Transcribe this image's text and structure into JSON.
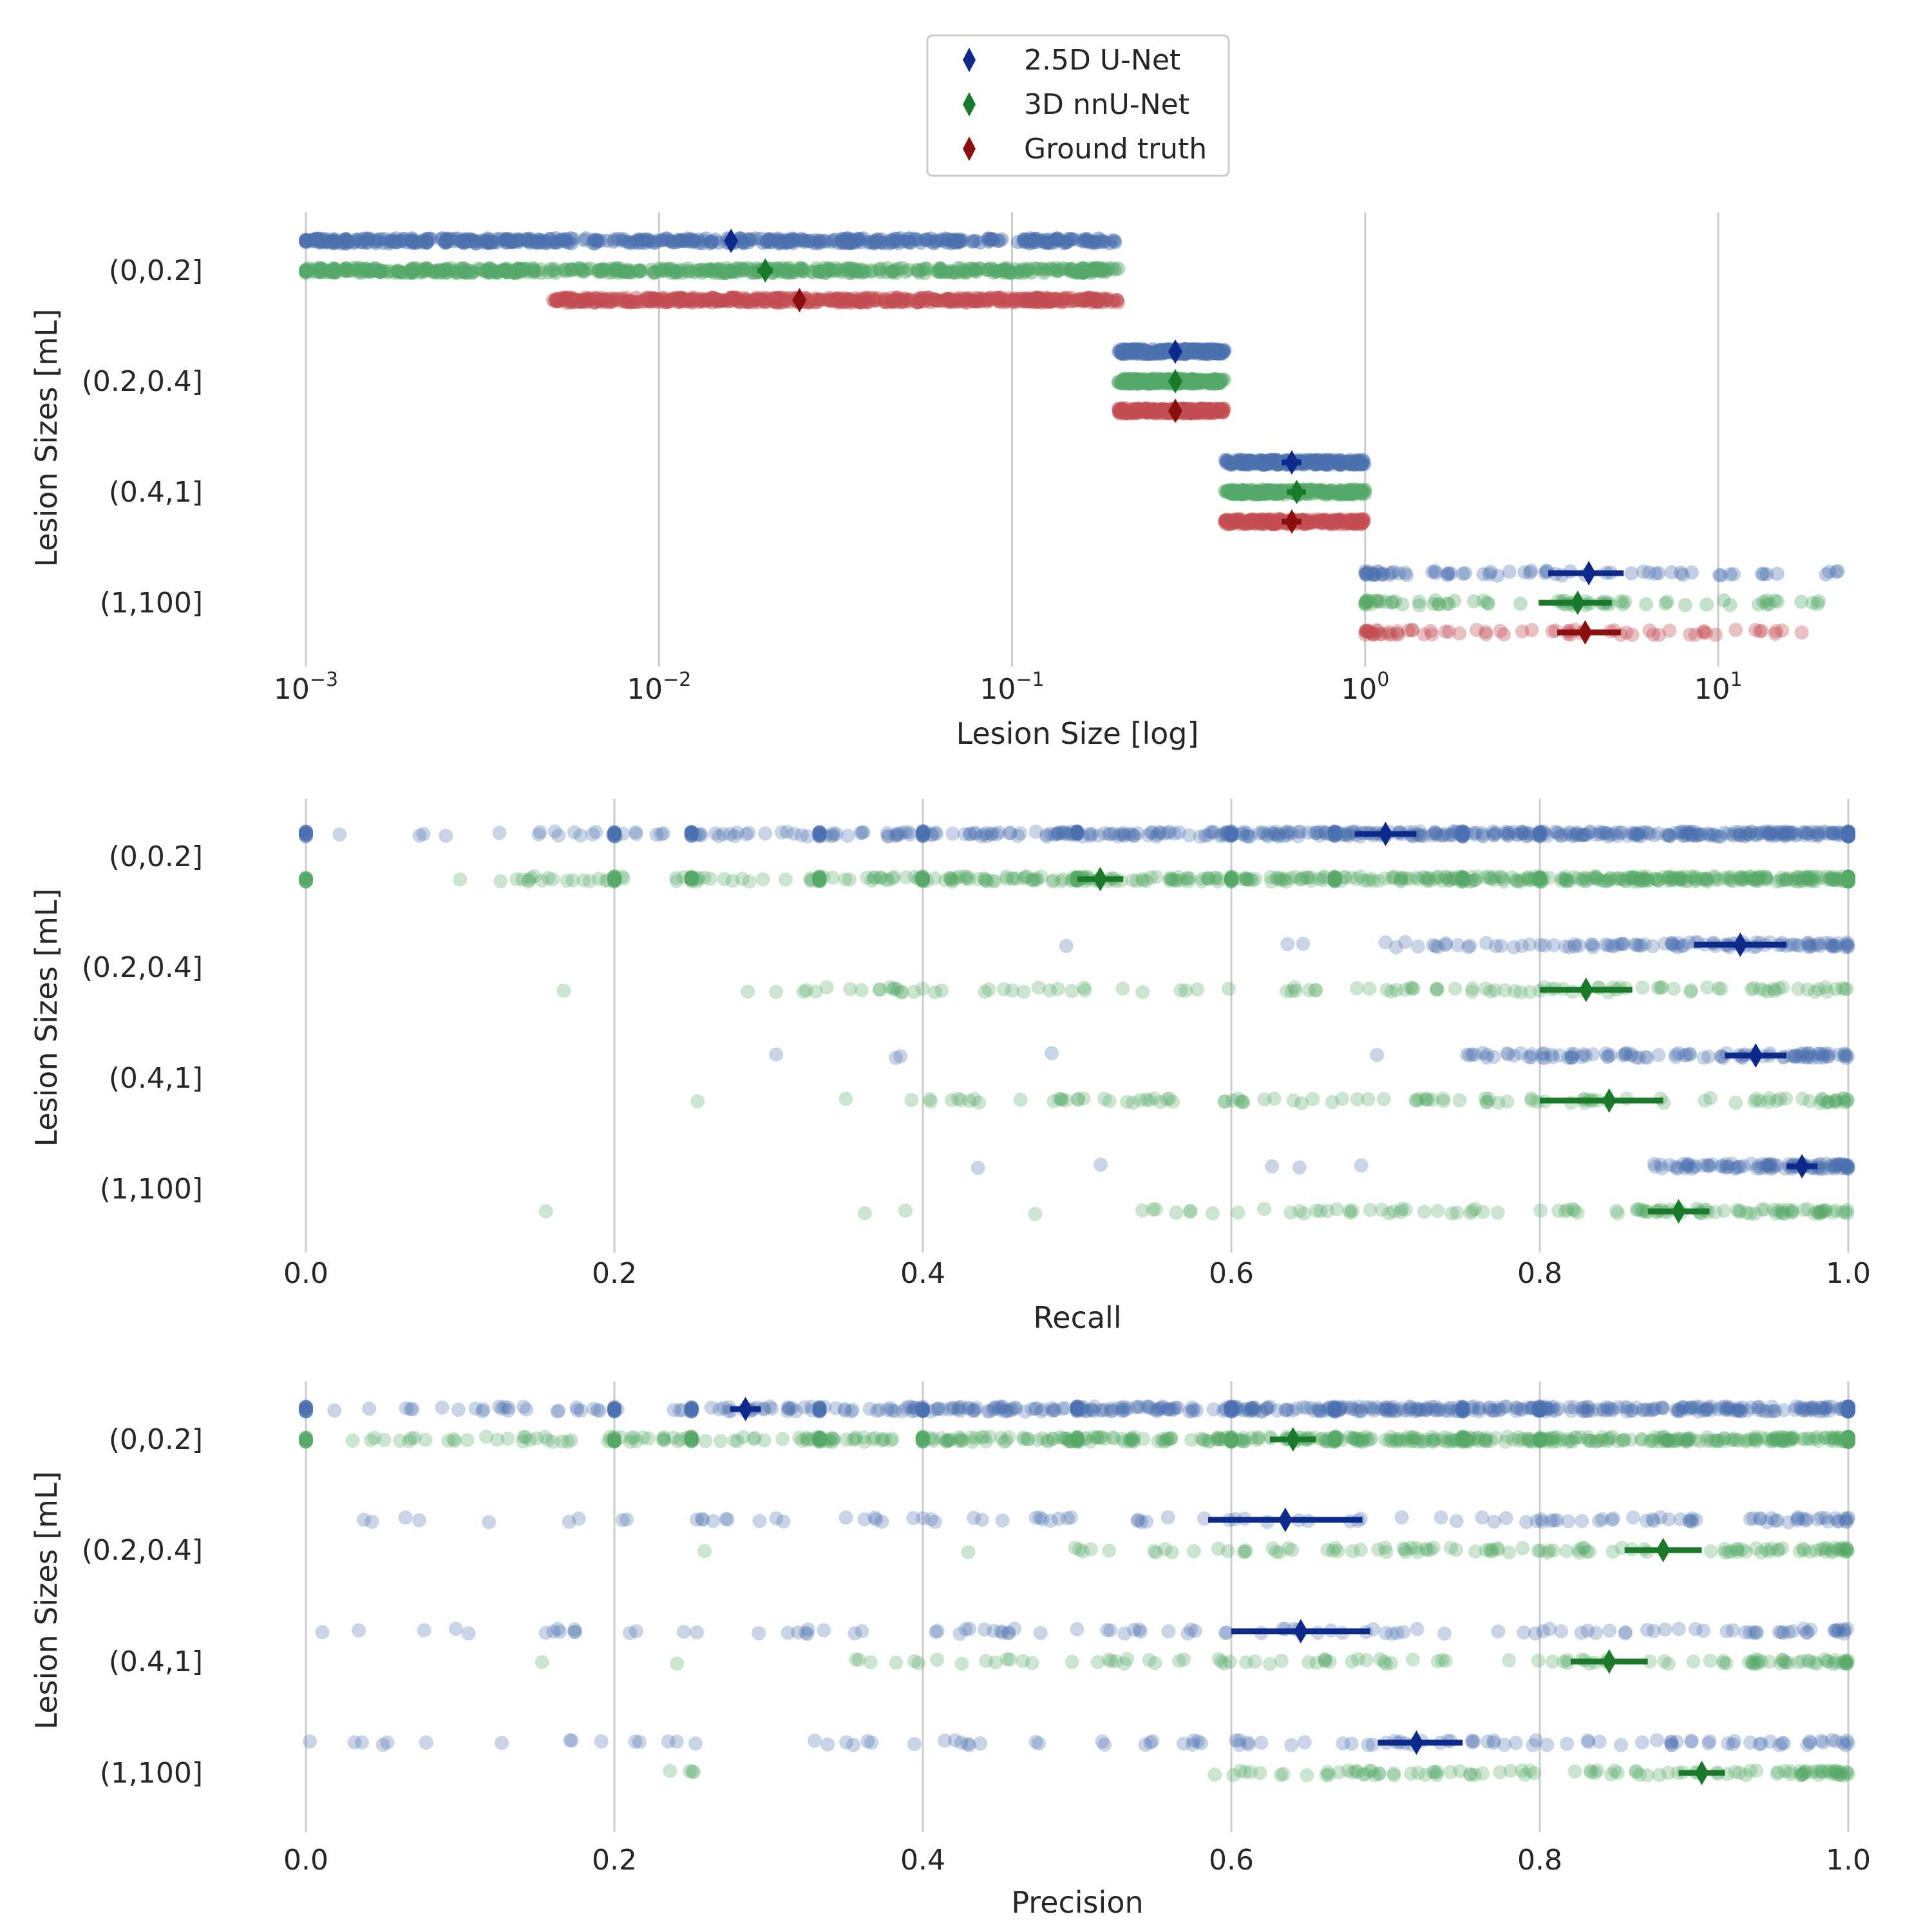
{
  "legend": {
    "entries": [
      {
        "label": "2.5D U-Net",
        "color": "#0d2a8a"
      },
      {
        "label": "3D nnU-Net",
        "color": "#1a7a2a"
      },
      {
        "label": "Ground truth",
        "color": "#8b0f0f"
      }
    ],
    "placement": "top-center"
  },
  "colors": {
    "unet_points": "#4c72b0",
    "nnunet_points": "#55a868",
    "gt_points": "#c44e52",
    "unet_mean": "#0d2a8a",
    "nnunet_mean": "#1a7a2a",
    "gt_mean": "#8b0f0f",
    "grid": "#cccccc"
  },
  "chart_data": [
    {
      "type": "scatter",
      "subtype": "strip",
      "xscale": "log",
      "xlabel": "Lesion Size [log]",
      "ylabel": "Lesion Sizes [mL]",
      "xlim": [
        0.001,
        25
      ],
      "xticks": [
        0.001,
        0.01,
        0.1,
        1,
        10
      ],
      "xtick_labels": [
        {
          "base": "10",
          "exp": "−3"
        },
        {
          "base": "10",
          "exp": "−2"
        },
        {
          "base": "10",
          "exp": "−1"
        },
        {
          "base": "10",
          "exp": "0"
        },
        {
          "base": "10",
          "exp": "1"
        }
      ],
      "categories": [
        "(0,0.2]",
        "(0.2,0.4]",
        "(0.4,1]",
        "(1,100]"
      ],
      "grid": "vertical",
      "series": [
        {
          "name": "2.5D U-Net",
          "means": [
            0.016,
            0.29,
            0.62,
            4.3
          ],
          "ci": [
            [
              0.0155,
              0.0165
            ],
            [
              0.28,
              0.3
            ],
            [
              0.58,
              0.66
            ],
            [
              3.3,
              5.4
            ]
          ],
          "ranges": [
            [
              0.001,
              0.2
            ],
            [
              0.2,
              0.4
            ],
            [
              0.4,
              1.0
            ],
            [
              1.0,
              23
            ]
          ]
        },
        {
          "name": "3D nnU-Net",
          "means": [
            0.02,
            0.29,
            0.64,
            4.0
          ],
          "ci": [
            [
              0.019,
              0.021
            ],
            [
              0.28,
              0.3
            ],
            [
              0.6,
              0.68
            ],
            [
              3.1,
              5.0
            ]
          ],
          "ranges": [
            [
              0.001,
              0.2
            ],
            [
              0.2,
              0.4
            ],
            [
              0.4,
              1.0
            ],
            [
              1.0,
              20
            ]
          ]
        },
        {
          "name": "Ground truth",
          "means": [
            0.025,
            0.29,
            0.62,
            4.2
          ],
          "ci": [
            [
              0.024,
              0.026
            ],
            [
              0.28,
              0.3
            ],
            [
              0.58,
              0.66
            ],
            [
              3.5,
              5.3
            ]
          ],
          "ranges": [
            [
              0.005,
              0.2
            ],
            [
              0.2,
              0.4
            ],
            [
              0.4,
              1.0
            ],
            [
              1.0,
              18
            ]
          ]
        }
      ]
    },
    {
      "type": "scatter",
      "subtype": "strip",
      "xlabel": "Recall",
      "ylabel": "Lesion Sizes [mL]",
      "xlim": [
        0,
        1
      ],
      "xticks": [
        0.0,
        0.2,
        0.4,
        0.6,
        0.8,
        1.0
      ],
      "xtick_labels": [
        "0.0",
        "0.2",
        "0.4",
        "0.6",
        "0.8",
        "1.0"
      ],
      "categories": [
        "(0,0.2]",
        "(0.2,0.4]",
        "(0.4,1]",
        "(1,100]"
      ],
      "grid": "vertical",
      "series": [
        {
          "name": "2.5D U-Net",
          "means": [
            0.7,
            0.93,
            0.94,
            0.97
          ],
          "ci": [
            [
              0.68,
              0.72
            ],
            [
              0.9,
              0.96
            ],
            [
              0.92,
              0.96
            ],
            [
              0.96,
              0.98
            ]
          ]
        },
        {
          "name": "3D nnU-Net",
          "means": [
            0.515,
            0.83,
            0.845,
            0.89
          ],
          "ci": [
            [
              0.5,
              0.53
            ],
            [
              0.8,
              0.86
            ],
            [
              0.8,
              0.88
            ],
            [
              0.87,
              0.91
            ]
          ]
        }
      ]
    },
    {
      "type": "scatter",
      "subtype": "strip",
      "xlabel": "Precision",
      "ylabel": "Lesion Sizes [mL]",
      "xlim": [
        0,
        1
      ],
      "xticks": [
        0.0,
        0.2,
        0.4,
        0.6,
        0.8,
        1.0
      ],
      "xtick_labels": [
        "0.0",
        "0.2",
        "0.4",
        "0.6",
        "0.8",
        "1.0"
      ],
      "categories": [
        "(0,0.2]",
        "(0.2,0.4]",
        "(0.4,1]",
        "(1,100]"
      ],
      "grid": "vertical",
      "series": [
        {
          "name": "2.5D U-Net",
          "means": [
            0.285,
            0.635,
            0.645,
            0.72
          ],
          "ci": [
            [
              0.275,
              0.295
            ],
            [
              0.585,
              0.685
            ],
            [
              0.6,
              0.69
            ],
            [
              0.695,
              0.75
            ]
          ]
        },
        {
          "name": "3D nnU-Net",
          "means": [
            0.64,
            0.88,
            0.845,
            0.905
          ],
          "ci": [
            [
              0.625,
              0.655
            ],
            [
              0.855,
              0.905
            ],
            [
              0.82,
              0.87
            ],
            [
              0.89,
              0.92
            ]
          ]
        }
      ]
    }
  ]
}
